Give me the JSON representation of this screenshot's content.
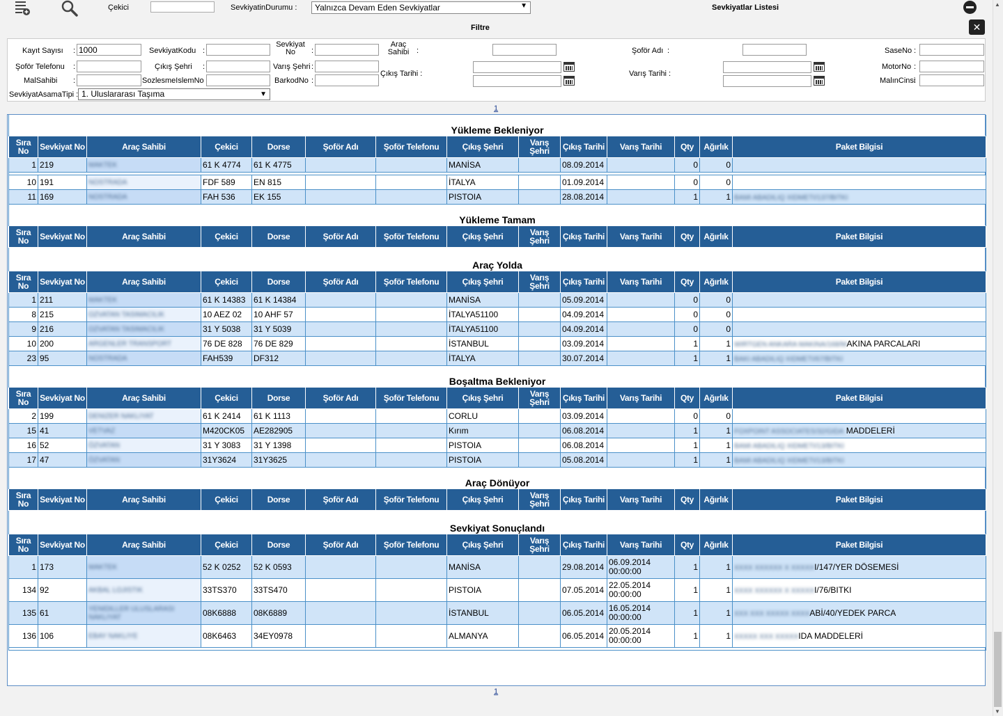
{
  "toolbar": {
    "cekici_label": "Çekici",
    "cekici_value": "",
    "durum_label": "SevkiyatinDurumu :",
    "durum_value": "Yalnızca Devam Eden Sevkiyatlar",
    "list_title": "Sevkiyatlar Listesi"
  },
  "filter": {
    "title": "Filtre",
    "kayit_sayisi_label": "Kayıt Sayısı",
    "kayit_sayisi_value": "1000",
    "sevkiyat_kodu_label": "SevkiyatKodu",
    "sevkiyat_no_label": "Sevkiyat No",
    "arac_sahibi_label": "Araç Sahibi",
    "sofor_adi_label": "Şoför Adı",
    "sase_no_label": "SaseNo",
    "sofor_tel_label": "Şoför Telefonu",
    "cikis_sehri_label": "Çıkış Şehri",
    "varis_sehri_label": "Varış Şehri",
    "cikis_tarihi_label": "Çıkış Tarihi :",
    "varis_tarihi_label": "Varış Tarihi :",
    "motor_no_label": "MotorNo",
    "mal_sahibi_label": "MalSahibi",
    "sozlesme_label": "SozlesmeIslemNo :",
    "barkod_label": "BarkodNo",
    "malin_cinsi_label": "MalınCinsi",
    "asama_label": "SevkiyatAsamaTipi :",
    "asama_value": "1. Uluslararası Taşıma",
    "colon": ":"
  },
  "pager": {
    "page": "1"
  },
  "columns": [
    "Sıra No",
    "Sevkiyat No",
    "Araç Sahibi",
    "Çekici",
    "Dorse",
    "Şoför Adı",
    "Şoför Telefonu",
    "Çıkış Şehri",
    "Varış Şehri",
    "Çıkış Tarihi",
    "Varış Tarihi",
    "Qty",
    "Ağırlık",
    "Paket Bilgisi"
  ],
  "sections": [
    {
      "title": "Yükleme Bekleniyor",
      "rows": [
        {
          "sira": "1",
          "no": "219",
          "sahip": "MAKTEK",
          "cekici": "61 K 4774",
          "dorse": "61 K 4775",
          "sofor": "",
          "tel": "",
          "cikis": "MANİSA",
          "varis": "",
          "ctarih": "08.09.2014",
          "vtarih": "",
          "qty": "0",
          "agirlik": "0",
          "paket_blur": "",
          "paket": "",
          "alt": true
        },
        {
          "sira": "10",
          "no": "191",
          "sahip": "NOSTRADA",
          "cekici": "FDF 589",
          "dorse": "EN 815",
          "sofor": "",
          "tel": "",
          "cikis": "İTALYA",
          "varis": "",
          "ctarih": "01.09.2014",
          "vtarih": "",
          "qty": "0",
          "agirlik": "0",
          "paket_blur": "",
          "paket": "",
          "alt": false
        },
        {
          "sira": "11",
          "no": "169",
          "sahip": "NOSTRADA",
          "cekici": "FAH 536",
          "dorse": "EK 155",
          "sofor": "",
          "tel": "",
          "cikis": "PISTOIA",
          "varis": "",
          "ctarih": "28.08.2014",
          "vtarih": "",
          "qty": "1",
          "agirlik": "1",
          "paket_blur": "BAMI ABADILIQ XIDMETI/137/BITKI",
          "paket": "",
          "alt": true
        }
      ]
    },
    {
      "title": "Yükleme Tamam",
      "rows": []
    },
    {
      "title": "Araç Yolda",
      "rows": [
        {
          "sira": "1",
          "no": "211",
          "sahip": "MAKTEK",
          "cekici": "61 K 14383",
          "dorse": "61 K 14384",
          "sofor": "",
          "tel": "",
          "cikis": "MANİSA",
          "varis": "",
          "ctarih": "05.09.2014",
          "vtarih": "",
          "qty": "0",
          "agirlik": "0",
          "paket_blur": "",
          "paket": "",
          "alt": true
        },
        {
          "sira": "8",
          "no": "215",
          "sahip": "OZVATAN TASIMACILIK",
          "cekici": "10 AEZ 02",
          "dorse": "10 AHF 57",
          "sofor": "",
          "tel": "",
          "cikis": "İTALYA51100",
          "varis": "",
          "ctarih": "04.09.2014",
          "vtarih": "",
          "qty": "0",
          "agirlik": "0",
          "paket_blur": "",
          "paket": "",
          "alt": false
        },
        {
          "sira": "9",
          "no": "216",
          "sahip": "OZVATAN TASIMACILIK",
          "cekici": "31 Y 5038",
          "dorse": "31 Y 5039",
          "sofor": "",
          "tel": "",
          "cikis": "İTALYA51100",
          "varis": "",
          "ctarih": "04.09.2014",
          "vtarih": "",
          "qty": "0",
          "agirlik": "0",
          "paket_blur": "",
          "paket": "",
          "alt": true
        },
        {
          "sira": "10",
          "no": "200",
          "sahip": "ARGENLER TRANSPORT",
          "cekici": "76 DE 828",
          "dorse": "76 DE 829",
          "sofor": "",
          "tel": "",
          "cikis": "İSTANBUL",
          "varis": "",
          "ctarih": "03.09.2014",
          "vtarih": "",
          "qty": "1",
          "agirlik": "1",
          "paket_blur": "WIRTGEN ANKARA MAKINA/168/M",
          "paket": "AKINA PARCALARI",
          "alt": false
        },
        {
          "sira": "23",
          "no": "95",
          "sahip": "NOSTRADA",
          "cekici": "FAH539",
          "dorse": "DF312",
          "sofor": "",
          "tel": "",
          "cikis": "İTALYA",
          "varis": "",
          "ctarih": "30.07.2014",
          "vtarih": "",
          "qty": "1",
          "agirlik": "1",
          "paket_blur": "BAKI ABADILIQ XIDMETI/67/BITKI",
          "paket": "",
          "alt": true
        }
      ]
    },
    {
      "title": "Boşaltma Bekleniyor",
      "rows": [
        {
          "sira": "2",
          "no": "199",
          "sahip": "DENIZER NAKLIYAT",
          "cekici": "61 K 2414",
          "dorse": "61 K 1113",
          "sofor": "",
          "tel": "",
          "cikis": "CORLU",
          "varis": "",
          "ctarih": "03.09.2014",
          "vtarih": "",
          "qty": "0",
          "agirlik": "0",
          "paket_blur": "",
          "paket": "",
          "alt": false
        },
        {
          "sira": "15",
          "no": "41",
          "sahip": "VETVAZ",
          "cekici": "M420CK05",
          "dorse": "AE282905",
          "sofor": "",
          "tel": "",
          "cikis": "Kırım",
          "varis": "",
          "ctarih": "06.08.2014",
          "vtarih": "",
          "qty": "1",
          "agirlik": "1",
          "paket_blur": "FOXPOINT ASSOCIATES/32/GIDA",
          "paket": " MADDELERİ",
          "alt": true
        },
        {
          "sira": "16",
          "no": "52",
          "sahip": "ÖZVATAN",
          "cekici": "31 Y 3083",
          "dorse": "31 Y 1398",
          "sofor": "",
          "tel": "",
          "cikis": "PISTOIA",
          "varis": "",
          "ctarih": "06.08.2014",
          "vtarih": "",
          "qty": "1",
          "agirlik": "1",
          "paket_blur": "BAMI ABADILIQ XIDMETI/13/BITKI",
          "paket": "",
          "alt": false
        },
        {
          "sira": "17",
          "no": "47",
          "sahip": "ÖZVATAN",
          "cekici": "31Y3624",
          "dorse": "31Y3625",
          "sofor": "",
          "tel": "",
          "cikis": "PISTOIA",
          "varis": "",
          "ctarih": "05.08.2014",
          "vtarih": "",
          "qty": "1",
          "agirlik": "1",
          "paket_blur": "BAMI ABADILIQ XIDMETI/13/BITKI",
          "paket": "",
          "alt": true
        }
      ]
    },
    {
      "title": "Araç Dönüyor",
      "rows": []
    },
    {
      "title": "Sevkiyat Sonuçlandı",
      "rows": [
        {
          "sira": "1",
          "no": "173",
          "sahip": "MAKTEK",
          "cekici": "52 K 0252",
          "dorse": "52 K 0593",
          "sofor": "",
          "tel": "",
          "cikis": "MANİSA",
          "varis": "",
          "ctarih": "29.08.2014",
          "vtarih": "06.09.2014 00:00:00",
          "qty": "1",
          "agirlik": "1",
          "paket_blur": "XXXX XXXXXX X XXXXX",
          "paket": "I/147/YER DÖSEMESİ",
          "alt": true,
          "tall": true
        },
        {
          "sira": "134",
          "no": "92",
          "sahip": "AKBAL LOJISTIK",
          "cekici": "33TS370",
          "dorse": "33TS470",
          "sofor": "",
          "tel": "",
          "cikis": "PISTOIA",
          "varis": "",
          "ctarih": "07.05.2014",
          "vtarih": "22.05.2014 00:00:00",
          "qty": "1",
          "agirlik": "1",
          "paket_blur": "XXXX XXXXXX X XXXXX",
          "paket": "I/76/BITKI",
          "alt": false,
          "tall": true
        },
        {
          "sira": "135",
          "no": "61",
          "sahip": "YENIDILLER ULUSLARASI NAKLIYAT",
          "cekici": "08K6888",
          "dorse": "08K6889",
          "sofor": "",
          "tel": "",
          "cikis": "İSTANBUL",
          "varis": "",
          "ctarih": "06.05.2014",
          "vtarih": "16.05.2014 00:00:00",
          "qty": "1",
          "agirlik": "1",
          "paket_blur": "XXX XXX XXXXX XXXX",
          "paket": "ABİ/40/YEDEK PARCA",
          "alt": true,
          "tall": true
        },
        {
          "sira": "136",
          "no": "106",
          "sahip": "EBAY NAKLIYE",
          "cekici": "08K6463",
          "dorse": "34EY0978",
          "sofor": "",
          "tel": "",
          "cikis": "ALMANYA",
          "varis": "",
          "ctarih": "06.05.2014",
          "vtarih": "20.05.2014 00:00:00",
          "qty": "1",
          "agirlik": "1",
          "paket_blur": "XXXXX XXX XXXXX",
          "paket": "IDA MADDELERİ",
          "alt": false,
          "tall": true
        }
      ]
    }
  ],
  "icons": {
    "new_list": "add-list-icon",
    "search": "search-icon",
    "collapse": "minus-circle-icon",
    "close": "close-icon",
    "calendar": "calendar-icon"
  },
  "colors": {
    "header_bg": "#255e96",
    "row_alt": "#d0e4f8",
    "border": "#4a90c8"
  }
}
